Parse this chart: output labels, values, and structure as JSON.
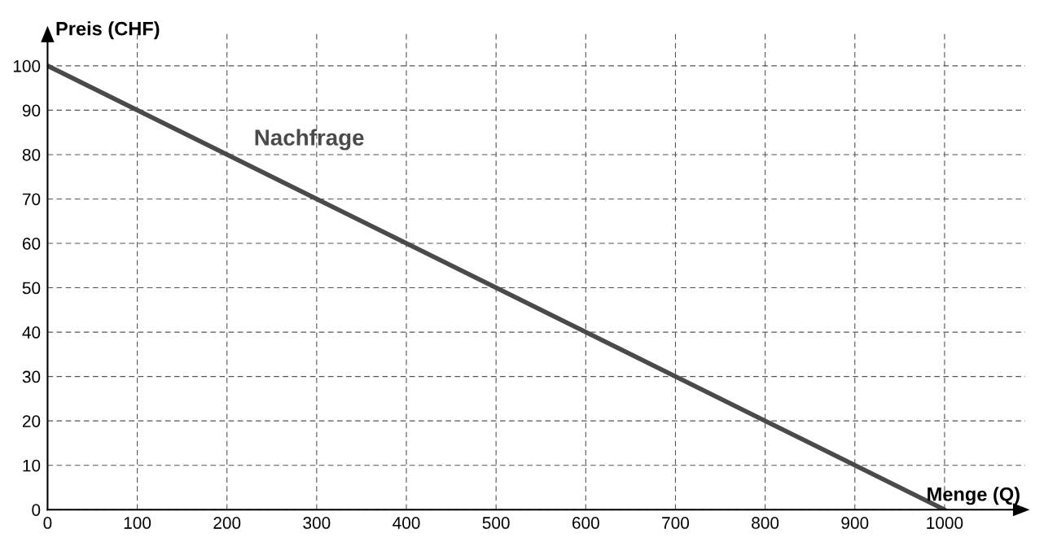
{
  "chart_data": {
    "type": "line",
    "xlabel": "Menge (Q)",
    "ylabel": "Preis (CHF)",
    "x": [
      0,
      1000
    ],
    "series": [
      {
        "name": "Nachfrage",
        "color": "#4a4a4a",
        "values": [
          100,
          0
        ]
      }
    ],
    "xlim": [
      0,
      1090
    ],
    "ylim": [
      0,
      108
    ],
    "xticks": [
      0,
      100,
      200,
      300,
      400,
      500,
      600,
      700,
      800,
      900,
      1000
    ],
    "yticks": [
      0,
      10,
      20,
      30,
      40,
      50,
      60,
      70,
      80,
      90,
      100
    ],
    "grid": true,
    "line_style": "solid",
    "marker": "none",
    "legend": false
  }
}
